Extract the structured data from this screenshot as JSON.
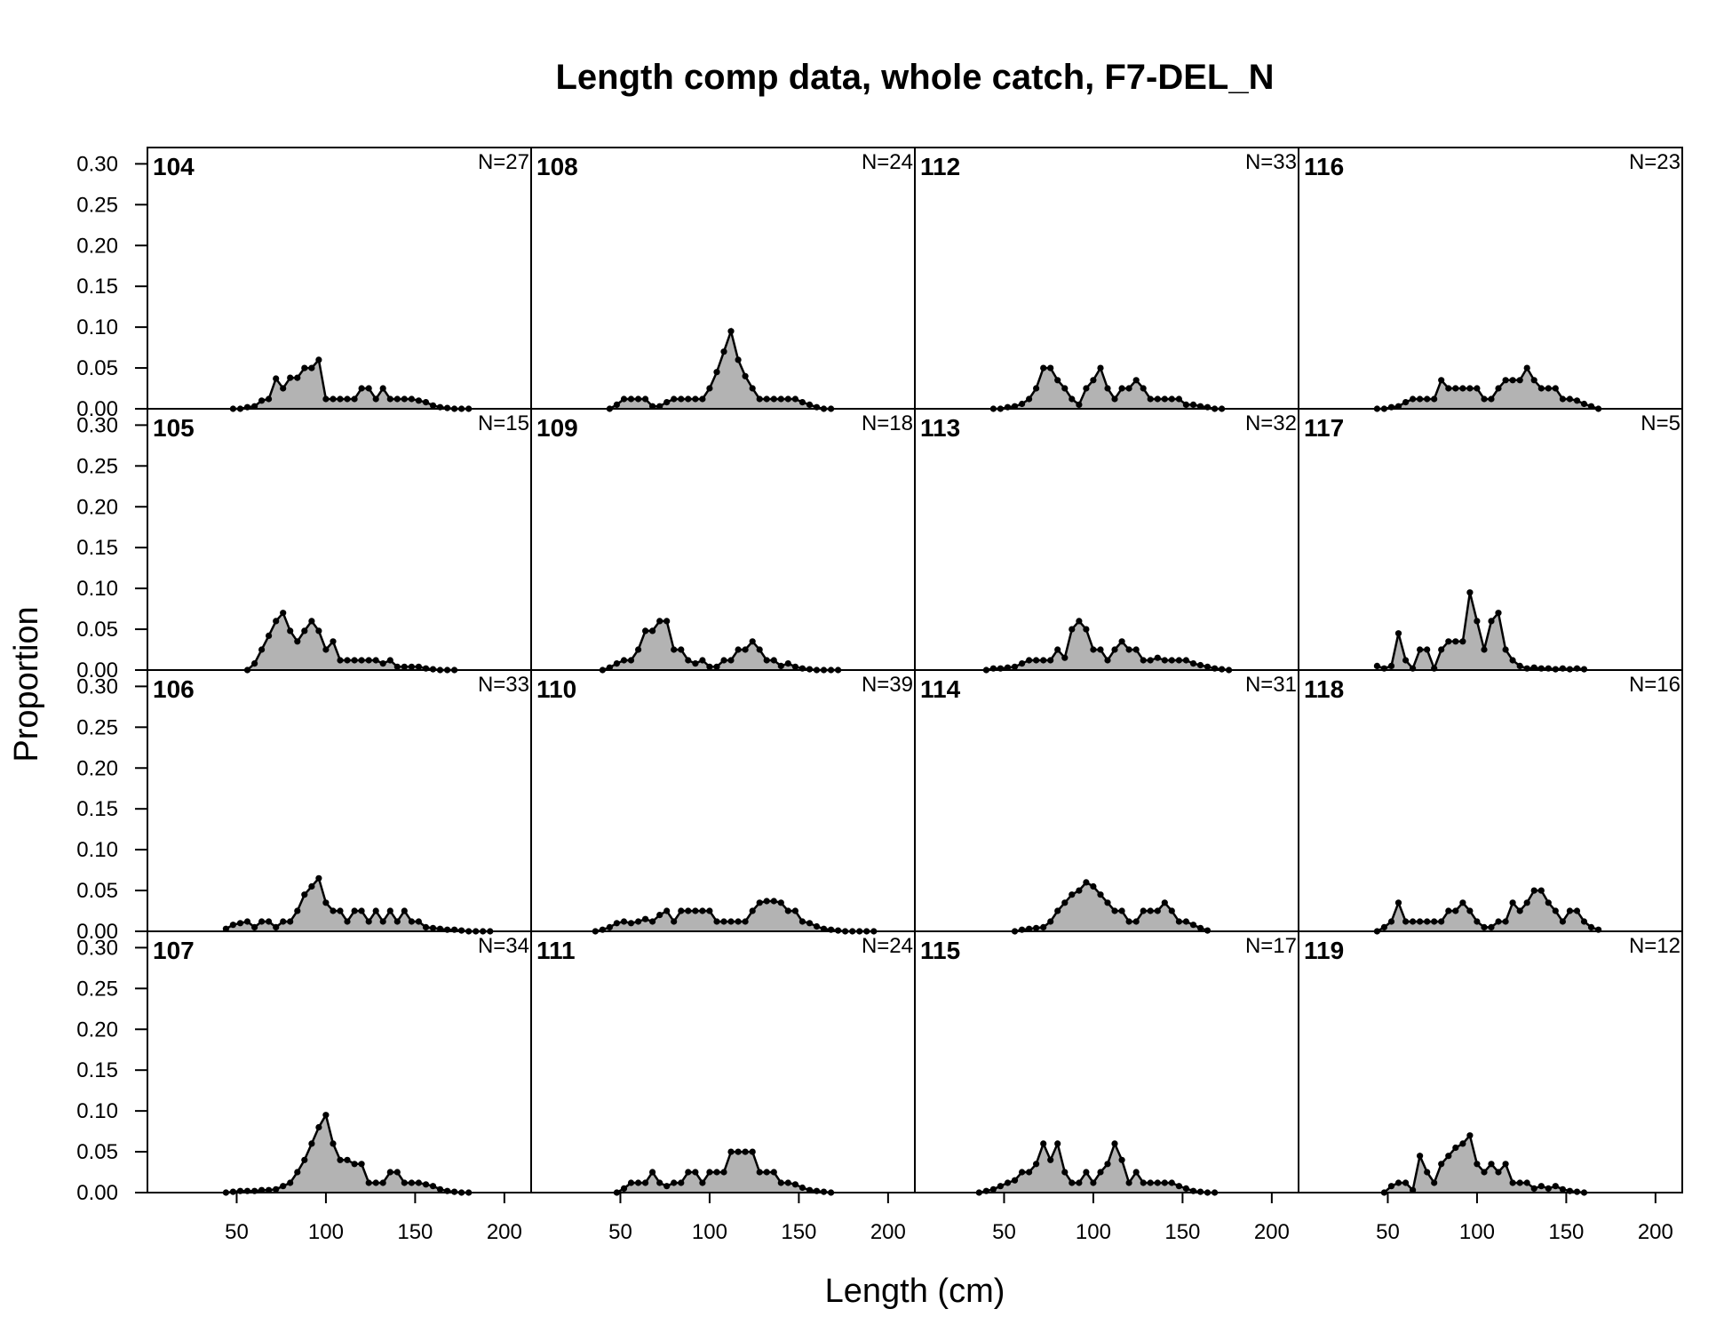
{
  "chart_data": {
    "type": "area",
    "title": "Length comp data, whole catch, F7-DEL_N",
    "xlabel": "Length (cm)",
    "ylabel": "Proportion",
    "xlim": [
      0,
      215
    ],
    "ylim": [
      0,
      0.32
    ],
    "x_ticks": [
      50,
      100,
      150,
      200
    ],
    "x_tick_labels": [
      "50",
      "100",
      "150",
      "200"
    ],
    "y_ticks": [
      0.0,
      0.05,
      0.1,
      0.15,
      0.2,
      0.25,
      0.3
    ],
    "y_tick_labels": [
      "0.00",
      "0.05",
      "0.10",
      "0.15",
      "0.20",
      "0.25",
      "0.30"
    ],
    "grid": false,
    "layout": {
      "rows": 4,
      "cols": 4,
      "order": "column-major"
    },
    "panels": [
      {
        "label": "104",
        "n_label": "N=27",
        "x": [
          48,
          52,
          56,
          60,
          64,
          68,
          72,
          76,
          80,
          84,
          88,
          92,
          96,
          100,
          104,
          108,
          112,
          116,
          120,
          124,
          128,
          132,
          136,
          140,
          144,
          148,
          152,
          156,
          160,
          164,
          168,
          172,
          176,
          180
        ],
        "values": [
          0,
          0,
          0.002,
          0.003,
          0.01,
          0.012,
          0.037,
          0.025,
          0.038,
          0.038,
          0.05,
          0.05,
          0.06,
          0.012,
          0.012,
          0.012,
          0.012,
          0.012,
          0.025,
          0.025,
          0.012,
          0.025,
          0.012,
          0.012,
          0.012,
          0.012,
          0.01,
          0.008,
          0.004,
          0.002,
          0.001,
          0,
          0,
          0
        ]
      },
      {
        "label": "105",
        "n_label": "N=15",
        "x": [
          56,
          60,
          64,
          68,
          72,
          76,
          80,
          84,
          88,
          92,
          96,
          100,
          104,
          108,
          112,
          116,
          120,
          124,
          128,
          132,
          136,
          140,
          144,
          148,
          152,
          156,
          160,
          164,
          168,
          172
        ],
        "values": [
          0,
          0.008,
          0.025,
          0.042,
          0.06,
          0.07,
          0.048,
          0.035,
          0.048,
          0.06,
          0.048,
          0.025,
          0.035,
          0.012,
          0.012,
          0.012,
          0.012,
          0.012,
          0.012,
          0.008,
          0.012,
          0.004,
          0.004,
          0.004,
          0.004,
          0.002,
          0.001,
          0,
          0,
          0
        ]
      },
      {
        "label": "106",
        "n_label": "N=33",
        "x": [
          44,
          48,
          52,
          56,
          60,
          64,
          68,
          72,
          76,
          80,
          84,
          88,
          92,
          96,
          100,
          104,
          108,
          112,
          116,
          120,
          124,
          128,
          132,
          136,
          140,
          144,
          148,
          152,
          156,
          160,
          164,
          168,
          172,
          176,
          180,
          184,
          188,
          192
        ],
        "values": [
          0.003,
          0.008,
          0.01,
          0.012,
          0.005,
          0.012,
          0.012,
          0.005,
          0.012,
          0.012,
          0.025,
          0.045,
          0.055,
          0.065,
          0.035,
          0.025,
          0.025,
          0.012,
          0.025,
          0.025,
          0.012,
          0.025,
          0.012,
          0.025,
          0.012,
          0.025,
          0.012,
          0.012,
          0.005,
          0.004,
          0.003,
          0.002,
          0.002,
          0.001,
          0,
          0,
          0,
          0
        ]
      },
      {
        "label": "107",
        "n_label": "N=34",
        "x": [
          44,
          48,
          52,
          56,
          60,
          64,
          68,
          72,
          76,
          80,
          84,
          88,
          92,
          96,
          100,
          104,
          108,
          112,
          116,
          120,
          124,
          128,
          132,
          136,
          140,
          144,
          148,
          152,
          156,
          160,
          164,
          168,
          172,
          176,
          180
        ],
        "values": [
          0,
          0.001,
          0.002,
          0.002,
          0.002,
          0.003,
          0.003,
          0.004,
          0.008,
          0.012,
          0.025,
          0.04,
          0.06,
          0.08,
          0.095,
          0.06,
          0.04,
          0.04,
          0.035,
          0.035,
          0.012,
          0.012,
          0.012,
          0.025,
          0.025,
          0.012,
          0.012,
          0.012,
          0.01,
          0.008,
          0.004,
          0.002,
          0.001,
          0,
          0
        ]
      },
      {
        "label": "108",
        "n_label": "N=24",
        "x": [
          44,
          48,
          52,
          56,
          60,
          64,
          68,
          72,
          76,
          80,
          84,
          88,
          92,
          96,
          100,
          104,
          108,
          112,
          116,
          120,
          124,
          128,
          132,
          136,
          140,
          144,
          148,
          152,
          156,
          160,
          164,
          168
        ],
        "values": [
          0,
          0.005,
          0.012,
          0.012,
          0.012,
          0.012,
          0.003,
          0.003,
          0.008,
          0.012,
          0.012,
          0.012,
          0.012,
          0.012,
          0.025,
          0.045,
          0.07,
          0.095,
          0.06,
          0.04,
          0.025,
          0.012,
          0.012,
          0.012,
          0.012,
          0.012,
          0.012,
          0.008,
          0.005,
          0.002,
          0,
          0
        ]
      },
      {
        "label": "109",
        "n_label": "N=18",
        "x": [
          40,
          44,
          48,
          52,
          56,
          60,
          64,
          68,
          72,
          76,
          80,
          84,
          88,
          92,
          96,
          100,
          104,
          108,
          112,
          116,
          120,
          124,
          128,
          132,
          136,
          140,
          144,
          148,
          152,
          156,
          160,
          164,
          168,
          172
        ],
        "values": [
          0,
          0.003,
          0.008,
          0.012,
          0.012,
          0.025,
          0.048,
          0.048,
          0.06,
          0.06,
          0.025,
          0.025,
          0.012,
          0.008,
          0.012,
          0.004,
          0.004,
          0.012,
          0.012,
          0.025,
          0.025,
          0.035,
          0.025,
          0.012,
          0.012,
          0.005,
          0.008,
          0.004,
          0.002,
          0.001,
          0,
          0,
          0,
          0
        ]
      },
      {
        "label": "110",
        "n_label": "N=39",
        "x": [
          36,
          40,
          44,
          48,
          52,
          56,
          60,
          64,
          68,
          72,
          76,
          80,
          84,
          88,
          92,
          96,
          100,
          104,
          108,
          112,
          116,
          120,
          124,
          128,
          132,
          136,
          140,
          144,
          148,
          152,
          156,
          160,
          164,
          168,
          172,
          176,
          180,
          184,
          188,
          192
        ],
        "values": [
          0,
          0.002,
          0.005,
          0.01,
          0.012,
          0.01,
          0.012,
          0.015,
          0.012,
          0.02,
          0.025,
          0.012,
          0.025,
          0.025,
          0.025,
          0.025,
          0.025,
          0.012,
          0.012,
          0.012,
          0.012,
          0.012,
          0.025,
          0.035,
          0.037,
          0.037,
          0.035,
          0.025,
          0.025,
          0.012,
          0.01,
          0.006,
          0.003,
          0.002,
          0.001,
          0,
          0,
          0,
          0,
          0
        ]
      },
      {
        "label": "111",
        "n_label": "N=24",
        "x": [
          48,
          52,
          56,
          60,
          64,
          68,
          72,
          76,
          80,
          84,
          88,
          92,
          96,
          100,
          104,
          108,
          112,
          116,
          120,
          124,
          128,
          132,
          136,
          140,
          144,
          148,
          152,
          156,
          160,
          164,
          168
        ],
        "values": [
          0,
          0.005,
          0.012,
          0.012,
          0.012,
          0.025,
          0.012,
          0.008,
          0.012,
          0.012,
          0.025,
          0.025,
          0.012,
          0.025,
          0.025,
          0.025,
          0.05,
          0.05,
          0.05,
          0.05,
          0.025,
          0.025,
          0.025,
          0.012,
          0.012,
          0.01,
          0.006,
          0.003,
          0.002,
          0.001,
          0
        ]
      },
      {
        "label": "112",
        "n_label": "N=33",
        "x": [
          44,
          48,
          52,
          56,
          60,
          64,
          68,
          72,
          76,
          80,
          84,
          88,
          92,
          96,
          100,
          104,
          108,
          112,
          116,
          120,
          124,
          128,
          132,
          136,
          140,
          144,
          148,
          152,
          156,
          160,
          164,
          168,
          172
        ],
        "values": [
          0,
          0,
          0.002,
          0.003,
          0.006,
          0.012,
          0.025,
          0.05,
          0.05,
          0.035,
          0.025,
          0.012,
          0.005,
          0.025,
          0.035,
          0.05,
          0.025,
          0.012,
          0.025,
          0.025,
          0.035,
          0.025,
          0.012,
          0.012,
          0.012,
          0.012,
          0.012,
          0.005,
          0.005,
          0.003,
          0.002,
          0,
          0
        ]
      },
      {
        "label": "113",
        "n_label": "N=32",
        "x": [
          40,
          44,
          48,
          52,
          56,
          60,
          64,
          68,
          72,
          76,
          80,
          84,
          88,
          92,
          96,
          100,
          104,
          108,
          112,
          116,
          120,
          124,
          128,
          132,
          136,
          140,
          144,
          148,
          152,
          156,
          160,
          164,
          168,
          172,
          176
        ],
        "values": [
          0,
          0.002,
          0.002,
          0.003,
          0.004,
          0.008,
          0.012,
          0.012,
          0.012,
          0.012,
          0.025,
          0.015,
          0.05,
          0.06,
          0.05,
          0.025,
          0.025,
          0.012,
          0.025,
          0.035,
          0.025,
          0.025,
          0.012,
          0.012,
          0.015,
          0.012,
          0.012,
          0.012,
          0.012,
          0.008,
          0.006,
          0.004,
          0.002,
          0.001,
          0
        ]
      },
      {
        "label": "114",
        "n_label": "N=31",
        "x": [
          56,
          60,
          64,
          68,
          72,
          76,
          80,
          84,
          88,
          92,
          96,
          100,
          104,
          108,
          112,
          116,
          120,
          124,
          128,
          132,
          136,
          140,
          144,
          148,
          152,
          156,
          160,
          164
        ],
        "values": [
          0,
          0.002,
          0.003,
          0.004,
          0.005,
          0.012,
          0.025,
          0.035,
          0.045,
          0.05,
          0.06,
          0.055,
          0.045,
          0.035,
          0.025,
          0.025,
          0.012,
          0.012,
          0.025,
          0.025,
          0.025,
          0.035,
          0.025,
          0.012,
          0.012,
          0.008,
          0.004,
          0.001
        ]
      },
      {
        "label": "115",
        "n_label": "N=17",
        "x": [
          36,
          40,
          44,
          48,
          52,
          56,
          60,
          64,
          68,
          72,
          76,
          80,
          84,
          88,
          92,
          96,
          100,
          104,
          108,
          112,
          116,
          120,
          124,
          128,
          132,
          136,
          140,
          144,
          148,
          152,
          156,
          160,
          164,
          168
        ],
        "values": [
          0,
          0.002,
          0.004,
          0.008,
          0.012,
          0.015,
          0.025,
          0.025,
          0.035,
          0.06,
          0.04,
          0.06,
          0.025,
          0.012,
          0.012,
          0.025,
          0.012,
          0.025,
          0.035,
          0.06,
          0.04,
          0.012,
          0.025,
          0.012,
          0.012,
          0.012,
          0.012,
          0.012,
          0.008,
          0.005,
          0.002,
          0.001,
          0,
          0
        ]
      },
      {
        "label": "116",
        "n_label": "N=23",
        "x": [
          44,
          48,
          52,
          56,
          60,
          64,
          68,
          72,
          76,
          80,
          84,
          88,
          92,
          96,
          100,
          104,
          108,
          112,
          116,
          120,
          124,
          128,
          132,
          136,
          140,
          144,
          148,
          152,
          156,
          160,
          164,
          168
        ],
        "values": [
          0,
          0,
          0.002,
          0.003,
          0.008,
          0.012,
          0.012,
          0.012,
          0.012,
          0.035,
          0.025,
          0.025,
          0.025,
          0.025,
          0.025,
          0.012,
          0.012,
          0.025,
          0.035,
          0.035,
          0.035,
          0.05,
          0.035,
          0.025,
          0.025,
          0.025,
          0.012,
          0.012,
          0.01,
          0.006,
          0.003,
          0
        ]
      },
      {
        "label": "117",
        "n_label": "N=5",
        "x": [
          44,
          48,
          52,
          56,
          60,
          64,
          68,
          72,
          76,
          80,
          84,
          88,
          92,
          96,
          100,
          104,
          108,
          112,
          116,
          120,
          124,
          128,
          132,
          136,
          140,
          144,
          148,
          152,
          156,
          160
        ],
        "values": [
          0.005,
          0.002,
          0.005,
          0.045,
          0.012,
          0.002,
          0.025,
          0.025,
          0.002,
          0.025,
          0.035,
          0.035,
          0.035,
          0.095,
          0.06,
          0.025,
          0.06,
          0.07,
          0.025,
          0.012,
          0.005,
          0.002,
          0.003,
          0.002,
          0.002,
          0.001,
          0.002,
          0.001,
          0.002,
          0.001
        ]
      },
      {
        "label": "118",
        "n_label": "N=16",
        "x": [
          44,
          48,
          52,
          56,
          60,
          64,
          68,
          72,
          76,
          80,
          84,
          88,
          92,
          96,
          100,
          104,
          108,
          112,
          116,
          120,
          124,
          128,
          132,
          136,
          140,
          144,
          148,
          152,
          156,
          160,
          164,
          168
        ],
        "values": [
          0,
          0.005,
          0.012,
          0.035,
          0.012,
          0.012,
          0.012,
          0.012,
          0.012,
          0.012,
          0.025,
          0.025,
          0.035,
          0.025,
          0.012,
          0.005,
          0.005,
          0.012,
          0.012,
          0.035,
          0.025,
          0.035,
          0.05,
          0.05,
          0.035,
          0.025,
          0.012,
          0.025,
          0.025,
          0.012,
          0.005,
          0.002
        ]
      },
      {
        "label": "119",
        "n_label": "N=12",
        "x": [
          48,
          52,
          56,
          60,
          64,
          68,
          72,
          76,
          80,
          84,
          88,
          92,
          96,
          100,
          104,
          108,
          112,
          116,
          120,
          124,
          128,
          132,
          136,
          140,
          144,
          148,
          152,
          156,
          160
        ],
        "values": [
          0,
          0.008,
          0.012,
          0.012,
          0.003,
          0.045,
          0.025,
          0.012,
          0.035,
          0.045,
          0.055,
          0.06,
          0.07,
          0.035,
          0.025,
          0.035,
          0.025,
          0.035,
          0.012,
          0.012,
          0.012,
          0.005,
          0.008,
          0.005,
          0.008,
          0.004,
          0.002,
          0.001,
          0
        ]
      }
    ]
  }
}
